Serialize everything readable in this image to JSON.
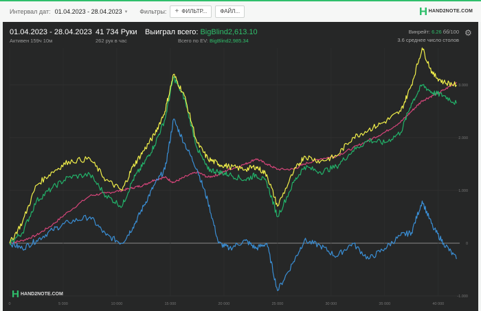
{
  "toolbar": {
    "interval_label": "Интервал дат:",
    "date_range": "01.04.2023 - 28.04.2023",
    "filters_label": "Фильтры:",
    "filter_button": "ФИЛЬТР...",
    "file_button": "ФАЙЛ...",
    "brand": "HAND2NOTE.COM"
  },
  "stats": {
    "period": "01.04.2023 - 28.04.2023",
    "active": "Активен 159ч 10м",
    "hands": "41 734 Руки",
    "hands_per_hour": "262 рук в час",
    "won_label": "Выиграл всего:",
    "won_value": "BigBlind2,613.10",
    "ev_label": "Всего по EV:",
    "ev_value": "BigBlind2,985.34",
    "winrate_label": "Винрейт:",
    "winrate_value": "6.26",
    "winrate_unit": "бб/100",
    "tables": "3.6 среднее число столов"
  },
  "watermark": "HAND2NOTE.COM",
  "colors": {
    "accent": "#2fbf6b",
    "yellow": "#f2f04a",
    "green": "#22b36a",
    "pink": "#d6457a",
    "blue": "#3a8fd6",
    "panel": "#262727"
  },
  "chart_data": {
    "type": "line",
    "xlim": [
      0,
      42000
    ],
    "ylim": [
      -1000,
      3700
    ],
    "x_ticks": [
      0,
      5000,
      10000,
      15000,
      20000,
      25000,
      30000,
      35000,
      40000
    ],
    "x_tick_labels": [
      "0",
      "5 000",
      "10 000",
      "15 000",
      "20 000",
      "25 000",
      "30 000",
      "35 000",
      "40 000"
    ],
    "y_ticks": [
      3000,
      2000,
      1000,
      0,
      -1000
    ],
    "y_tick_labels": [
      "3.000",
      "2.000",
      "1.000",
      "0",
      "-1.000"
    ],
    "grid": true,
    "x": [
      0,
      1200,
      2500,
      4000,
      5500,
      7500,
      9000,
      10500,
      11500,
      12500,
      13500,
      14500,
      15300,
      16300,
      17500,
      18500,
      19500,
      20500,
      22000,
      23000,
      24000,
      25000,
      26500,
      27500,
      29000,
      30500,
      32000,
      33500,
      35000,
      36500,
      37500,
      38500,
      39500,
      40500,
      41700
    ],
    "series": [
      {
        "color": "#f2f04a",
        "values": [
          0,
          400,
          1100,
          1350,
          1550,
          1600,
          1200,
          1000,
          1450,
          1750,
          2050,
          2500,
          3200,
          2800,
          1900,
          1600,
          1500,
          1450,
          1400,
          1450,
          1300,
          700,
          1350,
          1650,
          1550,
          1650,
          2000,
          2150,
          2300,
          2500,
          3000,
          3700,
          3200,
          3050,
          3000
        ]
      },
      {
        "color": "#22b36a",
        "values": [
          0,
          200,
          800,
          1050,
          1250,
          1300,
          900,
          700,
          1200,
          1500,
          1850,
          2350,
          3150,
          2750,
          1800,
          1400,
          1350,
          1300,
          1200,
          1300,
          1150,
          500,
          1150,
          1450,
          1350,
          1450,
          1750,
          1950,
          1900,
          2100,
          2650,
          3000,
          2850,
          2800,
          2650
        ]
      },
      {
        "color": "#d6457a",
        "values": [
          0,
          50,
          150,
          350,
          600,
          900,
          950,
          1000,
          1050,
          1100,
          1200,
          1250,
          1150,
          1250,
          1350,
          1250,
          1300,
          1400,
          1500,
          1600,
          1500,
          1400,
          1400,
          1500,
          1600,
          1650,
          1800,
          1950,
          2100,
          2300,
          2500,
          2700,
          2800,
          2900,
          3050
        ]
      },
      {
        "color": "#3a8fd6",
        "values": [
          0,
          -100,
          50,
          250,
          400,
          500,
          150,
          0,
          300,
          700,
          1100,
          1400,
          2350,
          1900,
          1400,
          800,
          0,
          -100,
          50,
          -100,
          0,
          -900,
          -350,
          50,
          -50,
          -250,
          0,
          -300,
          -100,
          150,
          200,
          800,
          300,
          0,
          -300
        ]
      }
    ]
  }
}
